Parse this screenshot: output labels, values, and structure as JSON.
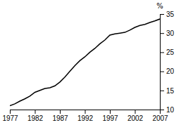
{
  "chart_data": {
    "type": "line",
    "ylabel": "%",
    "x": [
      1977,
      1978,
      1979,
      1980,
      1981,
      1982,
      1983,
      1984,
      1985,
      1986,
      1987,
      1988,
      1989,
      1990,
      1991,
      1992,
      1993,
      1994,
      1995,
      1996,
      1997,
      1998,
      1999,
      2000,
      2001,
      2002,
      2003,
      2004,
      2005,
      2006,
      2007
    ],
    "values": [
      11.0,
      11.5,
      12.2,
      12.8,
      13.5,
      14.5,
      15.0,
      15.5,
      15.7,
      16.2,
      17.2,
      18.5,
      20.0,
      21.5,
      22.8,
      23.8,
      25.0,
      26.0,
      27.2,
      28.2,
      29.5,
      29.8,
      30.0,
      30.2,
      30.8,
      31.5,
      32.0,
      32.3,
      32.8,
      33.2,
      33.7
    ],
    "color": "#000000",
    "xlim": [
      1977,
      2007
    ],
    "ylim": [
      10,
      35
    ],
    "xticks": [
      1977,
      1982,
      1987,
      1992,
      1997,
      2002,
      2007
    ],
    "yticks": [
      10,
      15,
      20,
      25,
      30,
      35
    ],
    "grid": false
  }
}
